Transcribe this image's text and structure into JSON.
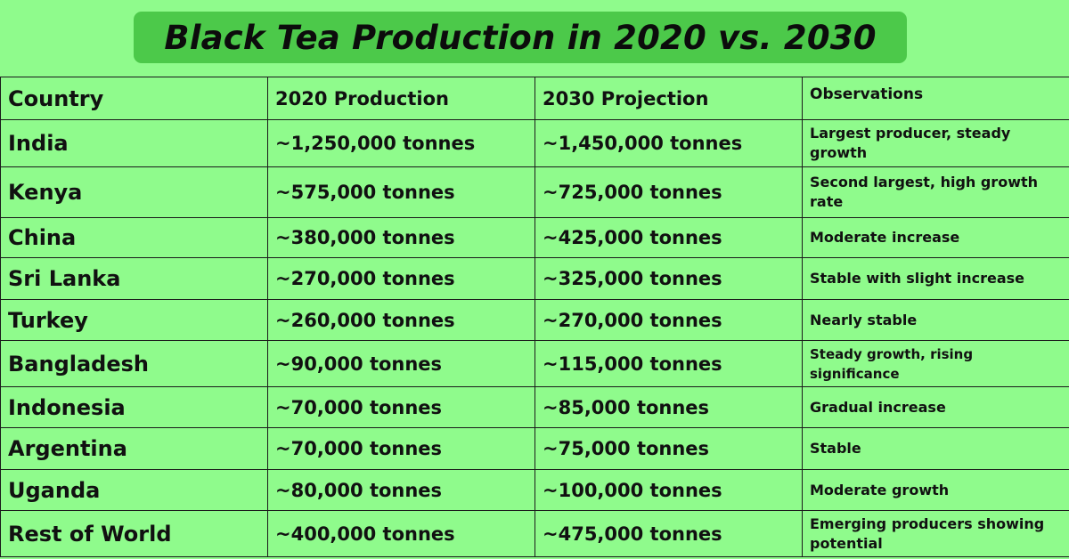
{
  "chart_data": {
    "type": "table",
    "title": "Black Tea Production in 2020 vs. 2030",
    "columns": [
      "Country",
      "2020 Production",
      "2030 Projection",
      "Observations"
    ],
    "rows": [
      {
        "country": "India",
        "p2020": "~1,250,000 tonnes",
        "p2030": "~1,450,000 tonnes",
        "obs": "Largest producer, steady growth"
      },
      {
        "country": "Kenya",
        "p2020": "~575,000 tonnes",
        "p2030": "~725,000 tonnes",
        "obs": "Second largest, high growth rate"
      },
      {
        "country": "China",
        "p2020": "~380,000 tonnes",
        "p2030": "~425,000 tonnes",
        "obs": "Moderate increase"
      },
      {
        "country": "Sri Lanka",
        "p2020": "~270,000 tonnes",
        "p2030": "~325,000 tonnes",
        "obs": "Stable with slight increase"
      },
      {
        "country": "Turkey",
        "p2020": "~260,000 tonnes",
        "p2030": "~270,000 tonnes",
        "obs": "Nearly stable"
      },
      {
        "country": "Bangladesh",
        "p2020": "~90,000 tonnes",
        "p2030": "~115,000 tonnes",
        "obs": "Steady growth, rising significance"
      },
      {
        "country": "Indonesia",
        "p2020": "~70,000 tonnes",
        "p2030": "~85,000 tonnes",
        "obs": "Gradual increase"
      },
      {
        "country": "Argentina",
        "p2020": "~70,000 tonnes",
        "p2030": "~75,000 tonnes",
        "obs": "Stable"
      },
      {
        "country": "Uganda",
        "p2020": "~80,000 tonnes",
        "p2030": "~100,000 tonnes",
        "obs": "Moderate growth"
      },
      {
        "country": "Rest of World",
        "p2020": "~400,000 tonnes",
        "p2030": "~475,000 tonnes",
        "obs": "Emerging producers showing potential"
      }
    ]
  },
  "colors": {
    "background": "#8ffb8c",
    "title_band": "#4cc94a",
    "text": "#111111",
    "border": "#1a1a1a"
  }
}
